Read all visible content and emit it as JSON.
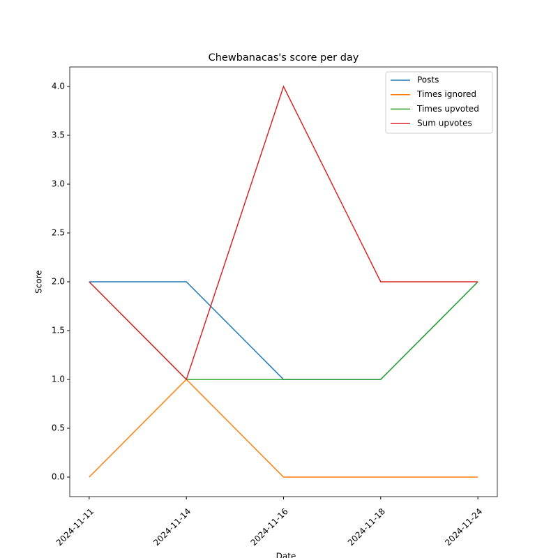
{
  "chart_data": {
    "type": "line",
    "title": "Chewbanacas's score per day",
    "x_label": "Date",
    "y_label": "Score",
    "categories": [
      "2024-11-11",
      "2024-11-14",
      "2024-11-16",
      "2024-11-18",
      "2024-11-24"
    ],
    "series": [
      {
        "name": "Posts",
        "color": "#1f77b4",
        "values": [
          2,
          2,
          1,
          1,
          2
        ]
      },
      {
        "name": "Times ignored",
        "color": "#ff7f0e",
        "values": [
          0,
          1,
          0,
          0,
          0
        ]
      },
      {
        "name": "Times upvoted",
        "color": "#2ca02c",
        "values": [
          2,
          1,
          1,
          1,
          2
        ]
      },
      {
        "name": "Sum upvotes",
        "color": "#d62728",
        "values": [
          2,
          1,
          4,
          2,
          2
        ]
      }
    ],
    "ylim": [
      -0.2,
      4.2
    ],
    "yticks": [
      {
        "value": 0,
        "label": "0.0"
      },
      {
        "value": 0.5,
        "label": "0.5"
      },
      {
        "value": 1,
        "label": "1.0"
      },
      {
        "value": 1.5,
        "label": "1.5"
      },
      {
        "value": 2,
        "label": "2.0"
      },
      {
        "value": 2.5,
        "label": "2.5"
      },
      {
        "value": 3,
        "label": "3.0"
      },
      {
        "value": 3.5,
        "label": "3.5"
      },
      {
        "value": 4,
        "label": "4.0"
      }
    ],
    "legend": "upper right",
    "grid": false
  }
}
